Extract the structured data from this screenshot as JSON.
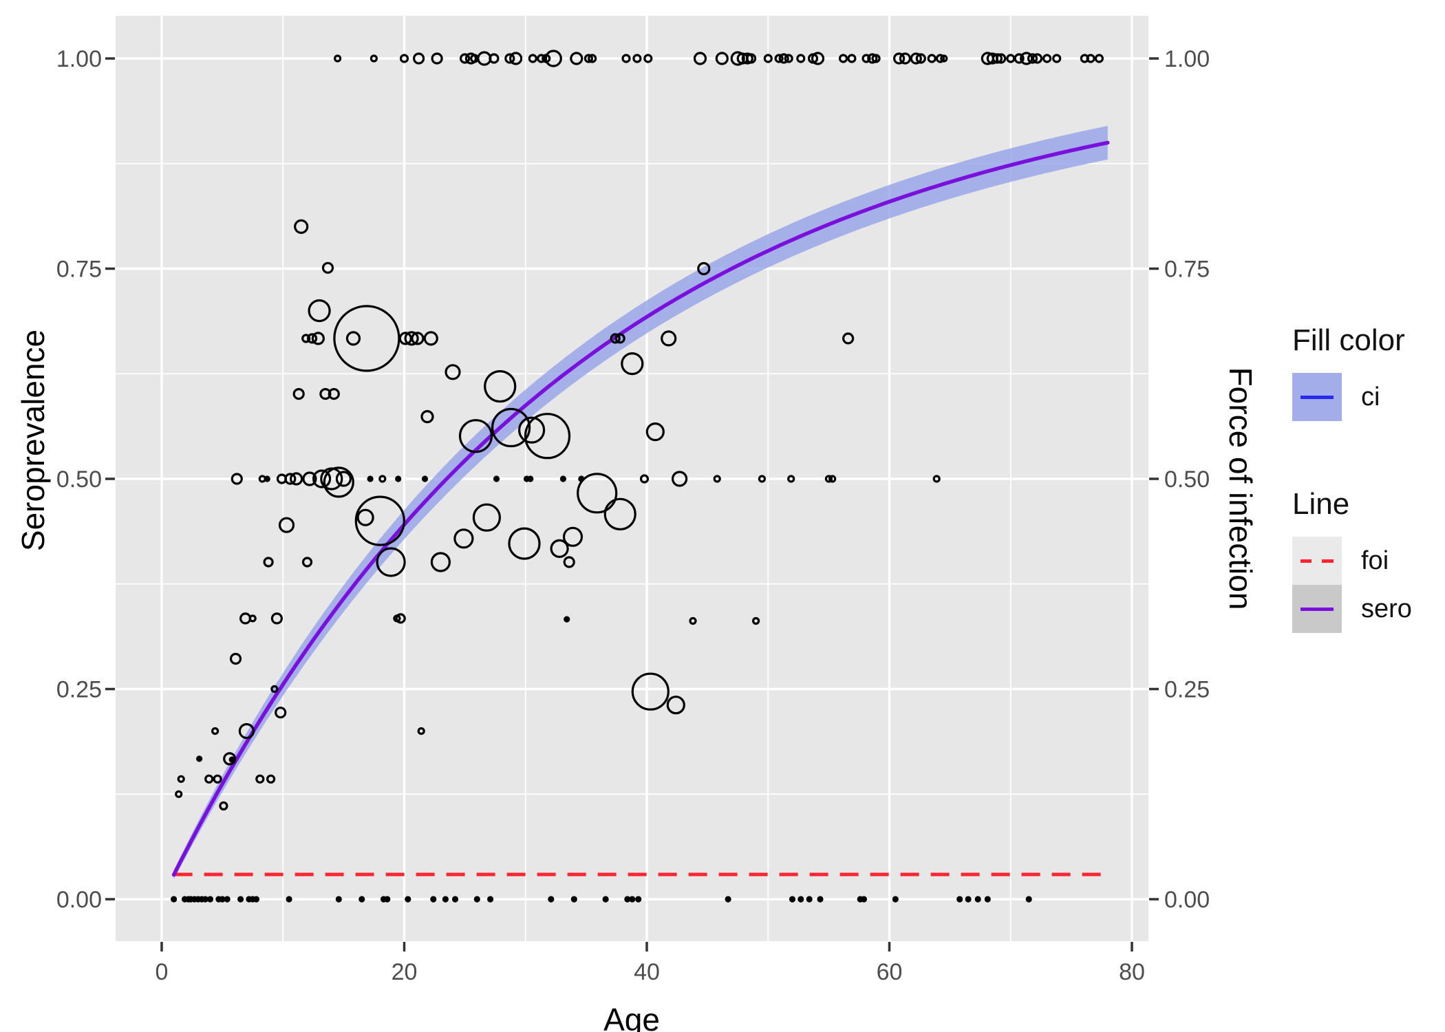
{
  "colors": {
    "panel": "#E7E7E7",
    "grid": "#FFFFFF",
    "tick": "#333333",
    "tick_label": "#4D4D4D",
    "text": "#000000",
    "point_stroke": "#000000",
    "ribbon": "#96A2E8",
    "ribbon_opacity": 0.8,
    "ribbon_key": "#A3ADE9",
    "sero_line": "#7A10DC",
    "foi_line": "#FB2631",
    "ci_key_line": "#2A2AEE",
    "key_foi_bg": "#EAEAEA",
    "key_sero_bg": "#C9C9C9"
  },
  "legend": {
    "fill": {
      "title": "Fill color",
      "items": [
        {
          "label": "ci"
        }
      ]
    },
    "line": {
      "title": "Line",
      "items": [
        {
          "label": "foi",
          "style": "dashed"
        },
        {
          "label": "sero",
          "style": "solid"
        }
      ]
    }
  },
  "chart_data": {
    "type": "scatter",
    "title": "",
    "x_axis": {
      "label": "Age",
      "tick_labels": [
        "0",
        "20",
        "40",
        "60",
        "80"
      ],
      "tick_values": [
        0,
        20,
        40,
        60,
        80
      ],
      "minor_values": [
        10,
        30,
        50,
        70
      ],
      "range": [
        -3.8,
        81.4
      ]
    },
    "y_axis_left": {
      "label": "Seroprevalence",
      "tick_labels": [
        "0.00",
        "0.25",
        "0.50",
        "0.75",
        "1.00"
      ],
      "tick_values": [
        0,
        0.25,
        0.5,
        0.75,
        1
      ],
      "minor_values": [
        0.125,
        0.375,
        0.625,
        0.875
      ],
      "range": [
        -0.047,
        1.052
      ]
    },
    "y_axis_right": {
      "label": "Force of infection",
      "tick_labels": [
        "0.00",
        "0.25",
        "0.50",
        "0.75",
        "1.00"
      ],
      "tick_values": [
        0,
        0.25,
        0.5,
        0.75,
        1
      ]
    },
    "model": {
      "foi": 0.0295,
      "sero_formula": "sero(age) = 1 - exp(-foi * age)",
      "ci_halfwidth_formula": "0.004 + 0.016 * (1 - exp(-0.09 * age))",
      "age_range": [
        1,
        78
      ]
    },
    "series": {
      "sero_points_sample": [
        [
          1,
          0.029
        ],
        [
          10,
          0.256
        ],
        [
          20,
          0.446
        ],
        [
          30,
          0.587
        ],
        [
          40,
          0.693
        ],
        [
          50,
          0.771
        ],
        [
          60,
          0.829
        ],
        [
          70,
          0.873
        ],
        [
          78,
          0.9
        ]
      ],
      "foi_line_y": 0.0295,
      "bubbles": [
        [
          11.5,
          0.8,
          9
        ],
        [
          13.7,
          0.751,
          7
        ],
        [
          44.7,
          0.75,
          8
        ],
        [
          13.0,
          0.7,
          15
        ],
        [
          11.9,
          0.667,
          5
        ],
        [
          12.4,
          0.667,
          6
        ],
        [
          12.9,
          0.667,
          8
        ],
        [
          15.8,
          0.667,
          9
        ],
        [
          16.9,
          0.667,
          47
        ],
        [
          20.1,
          0.667,
          8
        ],
        [
          20.6,
          0.667,
          9
        ],
        [
          21.1,
          0.667,
          8
        ],
        [
          22.2,
          0.667,
          9
        ],
        [
          37.4,
          0.667,
          6
        ],
        [
          37.8,
          0.667,
          6
        ],
        [
          41.8,
          0.667,
          10
        ],
        [
          56.6,
          0.667,
          7
        ],
        [
          38.8,
          0.637,
          15
        ],
        [
          24.0,
          0.627,
          10
        ],
        [
          27.9,
          0.61,
          22
        ],
        [
          11.3,
          0.601,
          7
        ],
        [
          13.5,
          0.601,
          7
        ],
        [
          14.2,
          0.601,
          7
        ],
        [
          21.9,
          0.574,
          8
        ],
        [
          28.8,
          0.561,
          27
        ],
        [
          30.5,
          0.558,
          18
        ],
        [
          40.7,
          0.556,
          12
        ],
        [
          25.9,
          0.551,
          23
        ],
        [
          31.8,
          0.551,
          32
        ],
        [
          6.2,
          0.5,
          7
        ],
        [
          8.3,
          0.5,
          4
        ],
        [
          8.7,
          0.5,
          3
        ],
        [
          9.9,
          0.5,
          6
        ],
        [
          10.6,
          0.5,
          7
        ],
        [
          11.1,
          0.5,
          8
        ],
        [
          12.2,
          0.5,
          9
        ],
        [
          13.2,
          0.5,
          12
        ],
        [
          14.0,
          0.5,
          15
        ],
        [
          14.6,
          0.496,
          21
        ],
        [
          15.0,
          0.5,
          10
        ],
        [
          17.2,
          0.5,
          3
        ],
        [
          18.2,
          0.5,
          4
        ],
        [
          19.5,
          0.5,
          3
        ],
        [
          21.7,
          0.5,
          3
        ],
        [
          27.6,
          0.5,
          3
        ],
        [
          30.1,
          0.5,
          3
        ],
        [
          30.4,
          0.5,
          3
        ],
        [
          33.1,
          0.5,
          3
        ],
        [
          34.6,
          0.5,
          3
        ],
        [
          39.8,
          0.5,
          5
        ],
        [
          42.7,
          0.5,
          10
        ],
        [
          45.8,
          0.5,
          4
        ],
        [
          49.5,
          0.5,
          4
        ],
        [
          51.9,
          0.5,
          4
        ],
        [
          55.0,
          0.5,
          4
        ],
        [
          55.3,
          0.5,
          4
        ],
        [
          63.9,
          0.5,
          4
        ],
        [
          35.9,
          0.483,
          28
        ],
        [
          37.8,
          0.458,
          22
        ],
        [
          26.8,
          0.454,
          19
        ],
        [
          16.8,
          0.454,
          11
        ],
        [
          18.0,
          0.45,
          35
        ],
        [
          10.3,
          0.445,
          10
        ],
        [
          24.9,
          0.429,
          13
        ],
        [
          33.9,
          0.431,
          13
        ],
        [
          29.9,
          0.423,
          22
        ],
        [
          32.8,
          0.417,
          12
        ],
        [
          8.8,
          0.401,
          6
        ],
        [
          12.0,
          0.401,
          6
        ],
        [
          18.9,
          0.401,
          20
        ],
        [
          23.0,
          0.401,
          13
        ],
        [
          33.6,
          0.401,
          7
        ],
        [
          6.9,
          0.334,
          7
        ],
        [
          7.5,
          0.334,
          4
        ],
        [
          9.5,
          0.334,
          7
        ],
        [
          19.4,
          0.334,
          4
        ],
        [
          19.7,
          0.334,
          6
        ],
        [
          33.4,
          0.333,
          3
        ],
        [
          43.8,
          0.331,
          4
        ],
        [
          49.0,
          0.331,
          4
        ],
        [
          6.1,
          0.286,
          7
        ],
        [
          9.3,
          0.25,
          4
        ],
        [
          40.3,
          0.247,
          26
        ],
        [
          42.4,
          0.231,
          12
        ],
        [
          9.8,
          0.222,
          7
        ],
        [
          4.4,
          0.2,
          4
        ],
        [
          7.0,
          0.2,
          10
        ],
        [
          21.4,
          0.2,
          4
        ],
        [
          3.1,
          0.167,
          3
        ],
        [
          5.6,
          0.167,
          8
        ],
        [
          5.8,
          0.166,
          3
        ],
        [
          1.6,
          0.143,
          4
        ],
        [
          3.9,
          0.143,
          5
        ],
        [
          4.6,
          0.143,
          5
        ],
        [
          8.1,
          0.143,
          5
        ],
        [
          9.0,
          0.143,
          5
        ],
        [
          1.4,
          0.125,
          4
        ],
        [
          5.1,
          0.111,
          5
        ]
      ],
      "points_at_one": [
        [
          14.5,
          4
        ],
        [
          17.5,
          4
        ],
        [
          20.0,
          5
        ],
        [
          21.2,
          7
        ],
        [
          22.7,
          7
        ],
        [
          25.0,
          6
        ],
        [
          25.5,
          7
        ],
        [
          25.8,
          5
        ],
        [
          26.6,
          9
        ],
        [
          27.4,
          6
        ],
        [
          28.7,
          6
        ],
        [
          29.2,
          8
        ],
        [
          30.6,
          5
        ],
        [
          31.3,
          5
        ],
        [
          31.7,
          5
        ],
        [
          32.3,
          11
        ],
        [
          34.2,
          8
        ],
        [
          35.2,
          5
        ],
        [
          35.5,
          5
        ],
        [
          38.3,
          5
        ],
        [
          39.2,
          5
        ],
        [
          40.1,
          5
        ],
        [
          44.4,
          8
        ],
        [
          46.2,
          8
        ],
        [
          47.5,
          9
        ],
        [
          47.9,
          7
        ],
        [
          48.3,
          7
        ],
        [
          48.6,
          6
        ],
        [
          50.0,
          5
        ],
        [
          50.9,
          5
        ],
        [
          51.3,
          6
        ],
        [
          51.7,
          5
        ],
        [
          52.7,
          5
        ],
        [
          53.7,
          6
        ],
        [
          54.1,
          8
        ],
        [
          56.2,
          5
        ],
        [
          56.9,
          5
        ],
        [
          58.1,
          5
        ],
        [
          58.6,
          6
        ],
        [
          58.9,
          5
        ],
        [
          60.8,
          7
        ],
        [
          61.3,
          7
        ],
        [
          62.2,
          7
        ],
        [
          62.6,
          6
        ],
        [
          63.5,
          5
        ],
        [
          64.2,
          5
        ],
        [
          64.5,
          4
        ],
        [
          68.1,
          8
        ],
        [
          68.5,
          7
        ],
        [
          68.9,
          6
        ],
        [
          69.2,
          6
        ],
        [
          70.0,
          5
        ],
        [
          70.7,
          6
        ],
        [
          71.3,
          8
        ],
        [
          71.8,
          6
        ],
        [
          72.2,
          6
        ],
        [
          73.0,
          5
        ],
        [
          73.8,
          5
        ],
        [
          76.1,
          5
        ],
        [
          76.6,
          5
        ],
        [
          77.3,
          5
        ]
      ],
      "points_at_zero": [
        1.0,
        1.9,
        2.2,
        2.4,
        2.7,
        3.0,
        3.3,
        3.6,
        4.0,
        4.7,
        5.0,
        5.4,
        6.5,
        7.2,
        7.5,
        7.8,
        10.5,
        14.6,
        16.5,
        18.3,
        18.6,
        20.3,
        22.4,
        23.4,
        24.2,
        26.0,
        27.1,
        32.1,
        34.0,
        36.6,
        38.4,
        38.8,
        39.3,
        46.7,
        52.0,
        52.7,
        53.4,
        54.3,
        57.6,
        57.9,
        60.5,
        65.8,
        66.5,
        67.3,
        68.1,
        71.5
      ]
    },
    "layout_hints": {
      "grid": "major+minor white on grey panel",
      "legend_position": "right",
      "secondary_axis": true
    }
  }
}
